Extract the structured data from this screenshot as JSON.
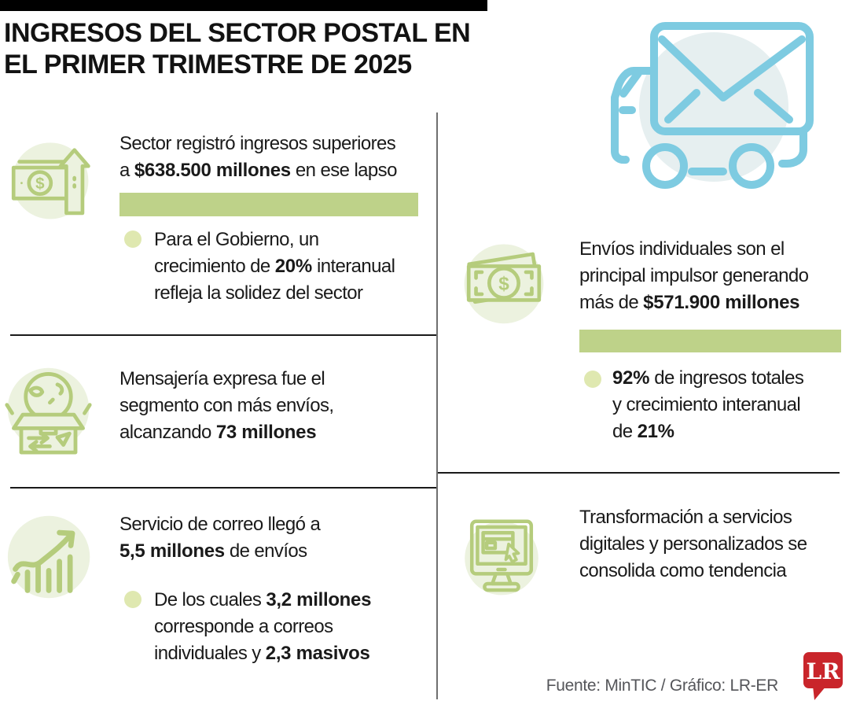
{
  "header": {
    "title_lines": [
      [
        {
          "t": "INGRESOS DEL SECTOR POSTAL EN"
        }
      ],
      [
        {
          "t": "EL PRIMER TRIMESTRE DE 2025"
        }
      ]
    ]
  },
  "colors": {
    "green_bar": "#bed289",
    "icon_green_stroke": "#b5cc7c",
    "icon_green_bg": "#ecf2df",
    "bullet_green": "#dfe8b0",
    "truck_blue": "#7ecbe1",
    "truck_bg": "#e6eff0",
    "lr_red": "#c9252b",
    "footer_gray": "#55565a"
  },
  "chart_data": {
    "type": "table",
    "title": "INGRESOS DEL SECTOR POSTAL EN EL PRIMER TRIMESTRE DE 2025",
    "facts": [
      {
        "metric": "Ingresos del sector Q1 2025",
        "value": "$638.500 millones",
        "note": "crecimiento interanual 20%"
      },
      {
        "metric": "Envíos mensajería expresa",
        "value": "73 millones"
      },
      {
        "metric": "Envíos servicio de correo",
        "value": "5,5 millones",
        "note": "3,2 millones individuales y 2,3 masivos"
      },
      {
        "metric": "Ingresos envíos individuales",
        "value": "$571.900 millones",
        "note": "92% de ingresos totales, crecimiento interanual 21%"
      },
      {
        "metric": "Tendencia",
        "value": "Transformación a servicios digitales y personalizados"
      }
    ]
  },
  "left_sections": [
    {
      "main_lines": [
        [
          {
            "t": "Sector registró ingresos superiores"
          }
        ],
        [
          {
            "t": "a "
          },
          {
            "t": "$638.500 millones",
            "b": 1
          },
          {
            "t": " en ese lapso"
          }
        ]
      ],
      "bullet_lines": [
        [
          {
            "t": "Para el Gobierno, un"
          }
        ],
        [
          {
            "t": "crecimiento de "
          },
          {
            "t": "20%",
            "b": 1
          },
          {
            "t": " interanual"
          }
        ],
        [
          {
            "t": "refleja la solidez del sector"
          }
        ]
      ]
    },
    {
      "main_lines": [
        [
          {
            "t": "Mensajería expresa fue el"
          }
        ],
        [
          {
            "t": "segmento con más envíos,"
          }
        ],
        [
          {
            "t": "alcanzando "
          },
          {
            "t": "73 millones",
            "b": 1
          }
        ]
      ]
    },
    {
      "main_lines": [
        [
          {
            "t": "Servicio de correo llegó a"
          }
        ],
        [
          {
            "t": "5,5 millones",
            "b": 1
          },
          {
            "t": " de envíos"
          }
        ]
      ],
      "bullet_lines": [
        [
          {
            "t": "De los cuales "
          },
          {
            "t": "3,2 millones",
            "b": 1
          }
        ],
        [
          {
            "t": "corresponde a correos"
          }
        ],
        [
          {
            "t": "individuales y "
          },
          {
            "t": "2,3 masivos",
            "b": 1
          }
        ]
      ]
    }
  ],
  "right_sections": [
    {
      "main_lines": [
        [
          {
            "t": "Envíos individuales son el"
          }
        ],
        [
          {
            "t": "principal impulsor generando"
          }
        ],
        [
          {
            "t": "más de "
          },
          {
            "t": "$571.900 millones",
            "b": 1
          }
        ]
      ],
      "bullet_lines": [
        [
          {
            "t": "92%",
            "b": 1
          },
          {
            "t": " de ingresos totales"
          }
        ],
        [
          {
            "t": "y crecimiento interanual"
          }
        ],
        [
          {
            "t": "de "
          },
          {
            "t": "21%",
            "b": 1
          }
        ]
      ]
    },
    {
      "main_lines": [
        [
          {
            "t": "Transformación a servicios"
          }
        ],
        [
          {
            "t": "digitales y personalizados se"
          }
        ],
        [
          {
            "t": "consolida como tendencia"
          }
        ]
      ]
    }
  ],
  "icons": {
    "dollar_glyph": "$"
  },
  "footer": {
    "source": "Fuente: MinTIC / Gráfico: LR-ER",
    "logo_text": "LR"
  }
}
